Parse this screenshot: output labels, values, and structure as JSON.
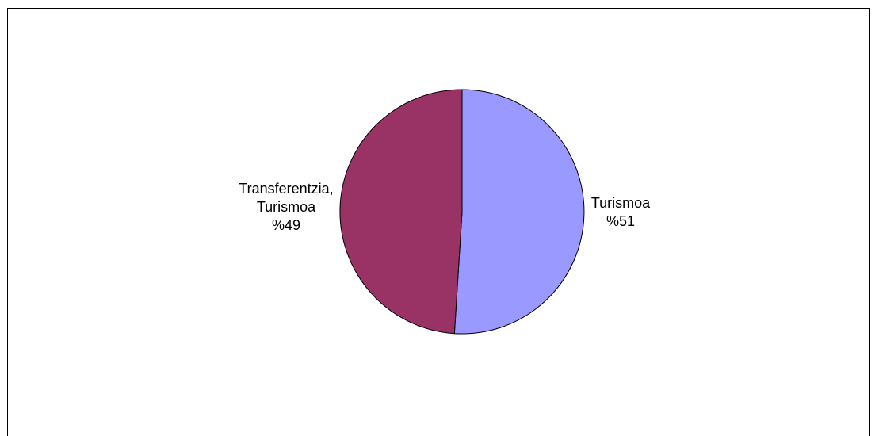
{
  "chart_data": {
    "type": "pie",
    "title": "",
    "legend": "none",
    "slices": [
      {
        "label_lines": [
          "Turismoa",
          "%51"
        ],
        "value": 51,
        "color": "#9999ff"
      },
      {
        "label_lines": [
          "Transferentzia,",
          "Turismoa",
          "%49"
        ],
        "value": 49,
        "color": "#993366"
      }
    ]
  }
}
